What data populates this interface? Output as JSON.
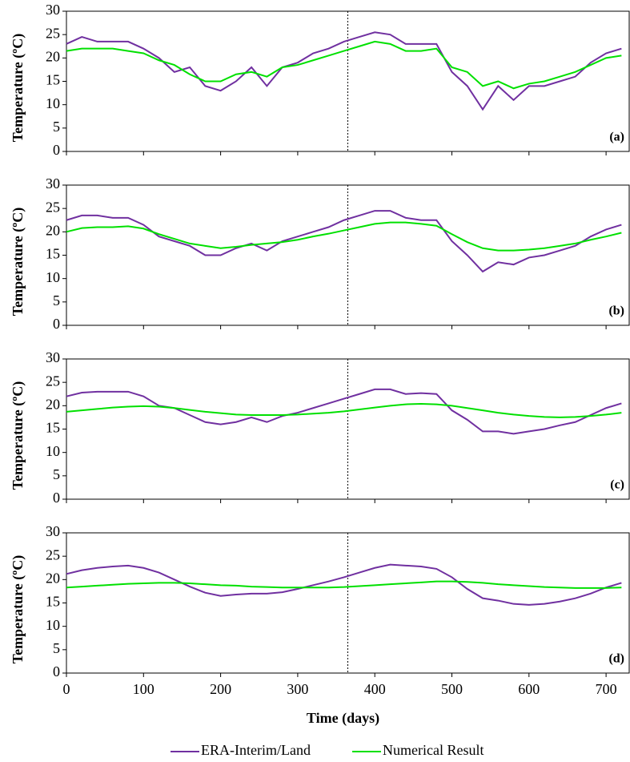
{
  "chart_data": [
    {
      "type": "line",
      "panel_label": "(a)",
      "y_label": "Temperature (ºC)",
      "xlim": [
        0,
        730
      ],
      "xticks": [
        0,
        100,
        200,
        300,
        400,
        500,
        600,
        700
      ],
      "ylim": [
        0,
        30
      ],
      "yticks": [
        0,
        5,
        10,
        15,
        20,
        25,
        30
      ],
      "vline": 365,
      "x": [
        0,
        20,
        40,
        60,
        80,
        100,
        120,
        140,
        160,
        180,
        200,
        220,
        240,
        260,
        280,
        300,
        320,
        340,
        360,
        380,
        400,
        420,
        440,
        460,
        480,
        500,
        520,
        540,
        560,
        580,
        600,
        620,
        640,
        660,
        680,
        700,
        720
      ],
      "series": [
        {
          "name": "ERA-Interim/Land",
          "color": "#7030a0",
          "values": [
            23,
            24.5,
            23.5,
            23.5,
            23.5,
            22,
            20,
            17,
            18,
            14,
            13,
            15,
            18,
            14,
            18,
            19,
            21,
            22,
            23.5,
            24.5,
            25.5,
            25,
            23,
            23,
            23,
            17,
            14,
            9,
            14,
            11,
            14,
            14,
            15,
            16,
            19,
            21,
            22
          ]
        },
        {
          "name": "Numerical Result",
          "color": "#00e000",
          "values": [
            21.5,
            22,
            22,
            22,
            21.5,
            21,
            19.5,
            18.5,
            16.5,
            15,
            15,
            16.5,
            17,
            16,
            18,
            18.5,
            19.5,
            20.5,
            21.5,
            22.5,
            23.5,
            23,
            21.5,
            21.5,
            22,
            18,
            17,
            14,
            15,
            13.5,
            14.5,
            15,
            16,
            17,
            18.5,
            20,
            20.5
          ]
        }
      ]
    },
    {
      "type": "line",
      "panel_label": "(b)",
      "y_label": "Temperature (ºC)",
      "xlim": [
        0,
        730
      ],
      "xticks": [
        0,
        100,
        200,
        300,
        400,
        500,
        600,
        700
      ],
      "ylim": [
        0,
        30
      ],
      "yticks": [
        0,
        5,
        10,
        15,
        20,
        25,
        30
      ],
      "vline": 365,
      "x": [
        0,
        20,
        40,
        60,
        80,
        100,
        120,
        140,
        160,
        180,
        200,
        220,
        240,
        260,
        280,
        300,
        320,
        340,
        360,
        380,
        400,
        420,
        440,
        460,
        480,
        500,
        520,
        540,
        560,
        580,
        600,
        620,
        640,
        660,
        680,
        700,
        720
      ],
      "series": [
        {
          "name": "ERA-Interim/Land",
          "color": "#7030a0",
          "values": [
            22.5,
            23.5,
            23.5,
            23,
            23,
            21.5,
            19,
            18,
            17,
            15,
            15,
            16.5,
            17.5,
            16,
            18,
            19,
            20,
            21,
            22.5,
            23.5,
            24.5,
            24.5,
            23,
            22.5,
            22.5,
            18,
            15,
            11.5,
            13.5,
            13,
            14.5,
            15,
            16,
            17,
            19,
            20.5,
            21.5
          ]
        },
        {
          "name": "Numerical Result",
          "color": "#00e000",
          "values": [
            20,
            20.8,
            21,
            21,
            21.2,
            20.7,
            19.5,
            18.5,
            17.5,
            17,
            16.5,
            16.8,
            17.2,
            17.5,
            17.8,
            18.3,
            19,
            19.6,
            20.3,
            21,
            21.7,
            22,
            22,
            21.7,
            21.3,
            19.5,
            17.8,
            16.5,
            16,
            16,
            16.2,
            16.5,
            17,
            17.5,
            18.3,
            19,
            19.8
          ]
        }
      ]
    },
    {
      "type": "line",
      "panel_label": "(c)",
      "y_label": "Temperature (ºC)",
      "xlim": [
        0,
        730
      ],
      "xticks": [
        0,
        100,
        200,
        300,
        400,
        500,
        600,
        700
      ],
      "ylim": [
        0,
        30
      ],
      "yticks": [
        0,
        5,
        10,
        15,
        20,
        25,
        30
      ],
      "vline": 365,
      "x": [
        0,
        20,
        40,
        60,
        80,
        100,
        120,
        140,
        160,
        180,
        200,
        220,
        240,
        260,
        280,
        300,
        320,
        340,
        360,
        380,
        400,
        420,
        440,
        460,
        480,
        500,
        520,
        540,
        560,
        580,
        600,
        620,
        640,
        660,
        680,
        700,
        720
      ],
      "series": [
        {
          "name": "ERA-Interim/Land",
          "color": "#7030a0",
          "values": [
            22,
            22.8,
            23,
            23,
            23,
            22,
            20,
            19.5,
            18,
            16.5,
            16,
            16.5,
            17.5,
            16.5,
            17.8,
            18.5,
            19.5,
            20.5,
            21.5,
            22.5,
            23.5,
            23.5,
            22.5,
            22.7,
            22.5,
            19,
            17,
            14.5,
            14.5,
            14,
            14.5,
            15,
            15.8,
            16.5,
            18,
            19.5,
            20.5
          ]
        },
        {
          "name": "Numerical Result",
          "color": "#00e000",
          "values": [
            18.7,
            19,
            19.3,
            19.6,
            19.8,
            19.9,
            19.8,
            19.5,
            19.1,
            18.7,
            18.4,
            18.1,
            18,
            18,
            18,
            18.1,
            18.3,
            18.5,
            18.8,
            19.2,
            19.6,
            20,
            20.3,
            20.4,
            20.3,
            20,
            19.5,
            19,
            18.5,
            18.1,
            17.8,
            17.6,
            17.5,
            17.6,
            17.8,
            18.1,
            18.5
          ]
        }
      ]
    },
    {
      "type": "line",
      "panel_label": "(d)",
      "y_label": "Temperature (ºC)",
      "x_label": "Time (days)",
      "xlim": [
        0,
        730
      ],
      "xticks": [
        0,
        100,
        200,
        300,
        400,
        500,
        600,
        700
      ],
      "ylim": [
        0,
        30
      ],
      "yticks": [
        0,
        5,
        10,
        15,
        20,
        25,
        30
      ],
      "vline": 365,
      "x": [
        0,
        20,
        40,
        60,
        80,
        100,
        120,
        140,
        160,
        180,
        200,
        220,
        240,
        260,
        280,
        300,
        320,
        340,
        360,
        380,
        400,
        420,
        440,
        460,
        480,
        500,
        520,
        540,
        560,
        580,
        600,
        620,
        640,
        660,
        680,
        700,
        720
      ],
      "series": [
        {
          "name": "ERA-Interim/Land",
          "color": "#7030a0",
          "values": [
            21.2,
            22,
            22.5,
            22.8,
            23,
            22.5,
            21.5,
            20,
            18.5,
            17.2,
            16.5,
            16.8,
            17,
            17,
            17.3,
            18,
            18.8,
            19.6,
            20.5,
            21.5,
            22.5,
            23.2,
            23,
            22.8,
            22.3,
            20.5,
            18,
            16,
            15.5,
            14.8,
            14.6,
            14.8,
            15.3,
            16,
            17,
            18.3,
            19.3
          ]
        },
        {
          "name": "Numerical Result",
          "color": "#00e000",
          "values": [
            18.3,
            18.5,
            18.7,
            18.9,
            19.1,
            19.2,
            19.3,
            19.3,
            19.2,
            19,
            18.8,
            18.7,
            18.5,
            18.4,
            18.3,
            18.3,
            18.3,
            18.3,
            18.4,
            18.6,
            18.8,
            19,
            19.2,
            19.4,
            19.6,
            19.6,
            19.5,
            19.3,
            19,
            18.8,
            18.6,
            18.4,
            18.3,
            18.2,
            18.2,
            18.2,
            18.3
          ]
        }
      ]
    }
  ]
}
